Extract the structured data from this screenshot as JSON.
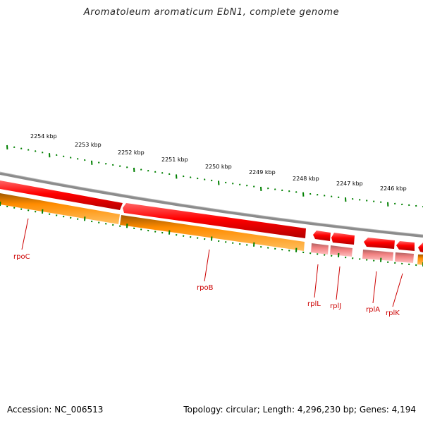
{
  "title": "Aromatoleum aromaticum EbN1, complete genome",
  "footer": {
    "accession": "Accession: NC_006513",
    "summary": "Topology: circular; Length: 4,296,230 bp; Genes: 4,194"
  },
  "colors": {
    "backbone": "#8c8c8c",
    "forward_cds": "#ff0000",
    "reverse_cds": "#ff8c00",
    "rna_gene": "#f08080",
    "tick": "#008000",
    "label": "#cc0000"
  },
  "ticks": [
    "2254 kbp",
    "2253 kbp",
    "2252 kbp",
    "2251 kbp",
    "2250 kbp",
    "2249 kbp",
    "2248 kbp",
    "2247 kbp",
    "2246 kbp"
  ],
  "genes": [
    {
      "label": "rpoC"
    },
    {
      "label": "rpoB"
    },
    {
      "label": "rplL"
    },
    {
      "label": "rplJ"
    },
    {
      "label": "rplA"
    },
    {
      "label": "rplK"
    }
  ]
}
